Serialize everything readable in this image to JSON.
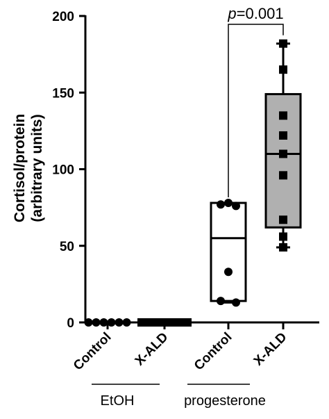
{
  "chart_data": {
    "type": "box",
    "title": "",
    "ylabel": [
      "Cortisol/protein",
      "(arbitrary units)"
    ],
    "ylim": [
      0,
      200
    ],
    "yticks": [
      0,
      50,
      100,
      150,
      200
    ],
    "categories": [
      "Control",
      "X-ALD",
      "Control",
      "X-ALD"
    ],
    "groups": [
      {
        "label": "EtOH",
        "members": [
          0,
          1
        ]
      },
      {
        "label": "progesterone",
        "members": [
          2,
          3
        ]
      }
    ],
    "series": [
      {
        "category": "Control",
        "group": "EtOH",
        "marker": "circle",
        "box": false,
        "values": [
          0,
          0,
          0,
          0,
          0,
          0
        ]
      },
      {
        "category": "X-ALD",
        "group": "EtOH",
        "marker": "square",
        "box": false,
        "values": [
          0,
          0,
          0,
          0,
          0,
          0,
          0
        ]
      },
      {
        "category": "Control",
        "group": "progesterone",
        "marker": "circle",
        "box": true,
        "fill": "#ffffff",
        "values": [
          78,
          77,
          76,
          33,
          14,
          13
        ],
        "min": 13,
        "q1": 14,
        "median": 55,
        "q3": 78,
        "max": 78
      },
      {
        "category": "X-ALD",
        "group": "progesterone",
        "marker": "square",
        "box": true,
        "fill": "#b0b0b0",
        "values": [
          182,
          165,
          135,
          122,
          110,
          96,
          67,
          56,
          49
        ],
        "min": 49,
        "q1": 62,
        "median": 110,
        "q3": 149,
        "max": 182
      }
    ],
    "annotations": [
      {
        "text_prefix": "p",
        "text": "=0.001",
        "between": [
          2,
          3
        ]
      }
    ]
  }
}
